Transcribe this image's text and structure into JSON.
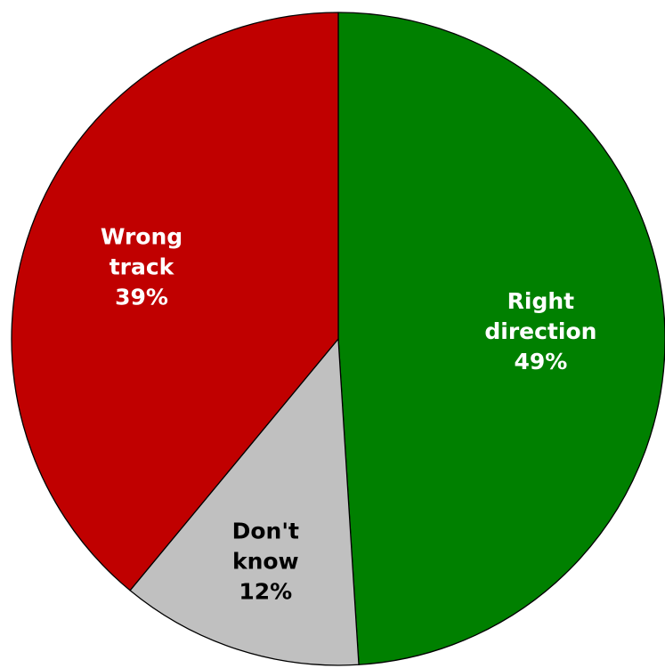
{
  "chart_data": {
    "type": "pie",
    "title": "",
    "slices": [
      {
        "label_lines": [
          "Right",
          "direction"
        ],
        "value": 49,
        "value_label": "49%",
        "color": "#008000",
        "text_color": "#ffffff"
      },
      {
        "label_lines": [
          "Don't",
          "know"
        ],
        "value": 12,
        "value_label": "12%",
        "color": "#c0c0c0",
        "text_color": "#000000"
      },
      {
        "label_lines": [
          "Wrong",
          "track"
        ],
        "value": 39,
        "value_label": "39%",
        "color": "#c00000",
        "text_color": "#ffffff"
      }
    ],
    "start_angle": "12 o'clock",
    "direction": "clockwise",
    "legend": "none"
  }
}
